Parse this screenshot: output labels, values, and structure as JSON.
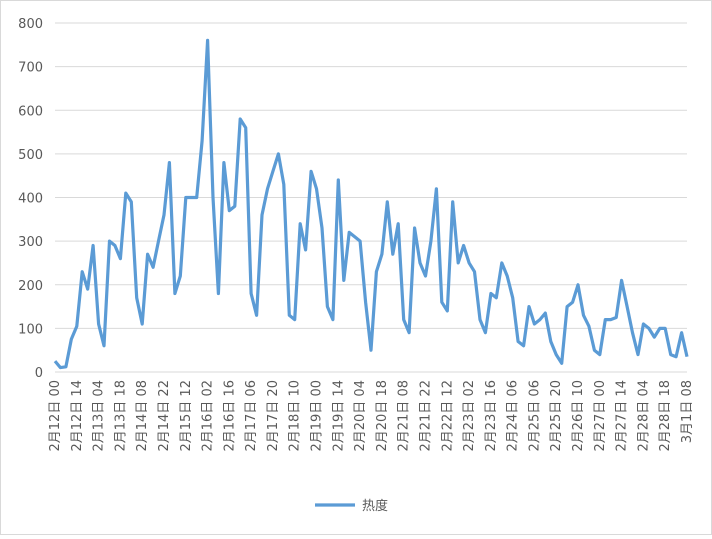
{
  "chart_data": {
    "type": "line",
    "categories": [
      "2月12日 00",
      null,
      null,
      null,
      "2月12日 14",
      null,
      null,
      null,
      "2月13日 04",
      null,
      null,
      null,
      "2月13日 18",
      null,
      null,
      null,
      "2月14日 08",
      null,
      null,
      null,
      "2月14日 22",
      null,
      null,
      null,
      "2月15日 12",
      null,
      null,
      null,
      "2月16日 02",
      null,
      null,
      null,
      "2月16日 16",
      null,
      null,
      null,
      "2月17日 06",
      null,
      null,
      null,
      "2月17日 20",
      null,
      null,
      null,
      "2月18日 10",
      null,
      null,
      null,
      "2月19日 00",
      null,
      null,
      null,
      "2月19日 14",
      null,
      null,
      null,
      "2月20日 04",
      null,
      null,
      null,
      "2月20日 18",
      null,
      null,
      null,
      "2月21日 08",
      null,
      null,
      null,
      "2月21日 22",
      null,
      null,
      null,
      "2月22日 12",
      null,
      null,
      null,
      "2月23日 02",
      null,
      null,
      null,
      "2月23日 16",
      null,
      null,
      null,
      "2月24日 06",
      null,
      null,
      null,
      "2月25日 06",
      null,
      null,
      null,
      "2月25日 20",
      null,
      null,
      null,
      "2月26日 10",
      null,
      null,
      null,
      "2月27日 00",
      null,
      null,
      null,
      "2月27日 14",
      null,
      null,
      null,
      "2月28日 04",
      null,
      null,
      null,
      "2月28日 18",
      null,
      null,
      null,
      "3月1日 08"
    ],
    "series": [
      {
        "name": "热度",
        "color": "#5b9bd5",
        "values": [
          25,
          10,
          12,
          75,
          105,
          230,
          190,
          290,
          110,
          60,
          300,
          290,
          260,
          410,
          390,
          170,
          110,
          270,
          240,
          300,
          360,
          480,
          180,
          220,
          400,
          400,
          400,
          530,
          760,
          400,
          180,
          480,
          370,
          380,
          580,
          560,
          180,
          130,
          360,
          420,
          460,
          500,
          430,
          130,
          120,
          340,
          280,
          460,
          420,
          330,
          150,
          120,
          440,
          210,
          320,
          310,
          300,
          160,
          50,
          230,
          270,
          390,
          270,
          340,
          120,
          90,
          330,
          250,
          220,
          300,
          420,
          160,
          140,
          390,
          250,
          290,
          250,
          230,
          120,
          90,
          180,
          170,
          250,
          220,
          170,
          70,
          60,
          150,
          110,
          120,
          135,
          70,
          40,
          20,
          150,
          160,
          200,
          130,
          105,
          50,
          40,
          120,
          120,
          125,
          210,
          150,
          90,
          40,
          110,
          100,
          80,
          100,
          100,
          40,
          35,
          90,
          35
        ]
      }
    ],
    "ylim": [
      0,
      800
    ],
    "yticks": [
      0,
      100,
      200,
      300,
      400,
      500,
      600,
      700,
      800
    ],
    "grid": true,
    "legend": "bottom"
  }
}
